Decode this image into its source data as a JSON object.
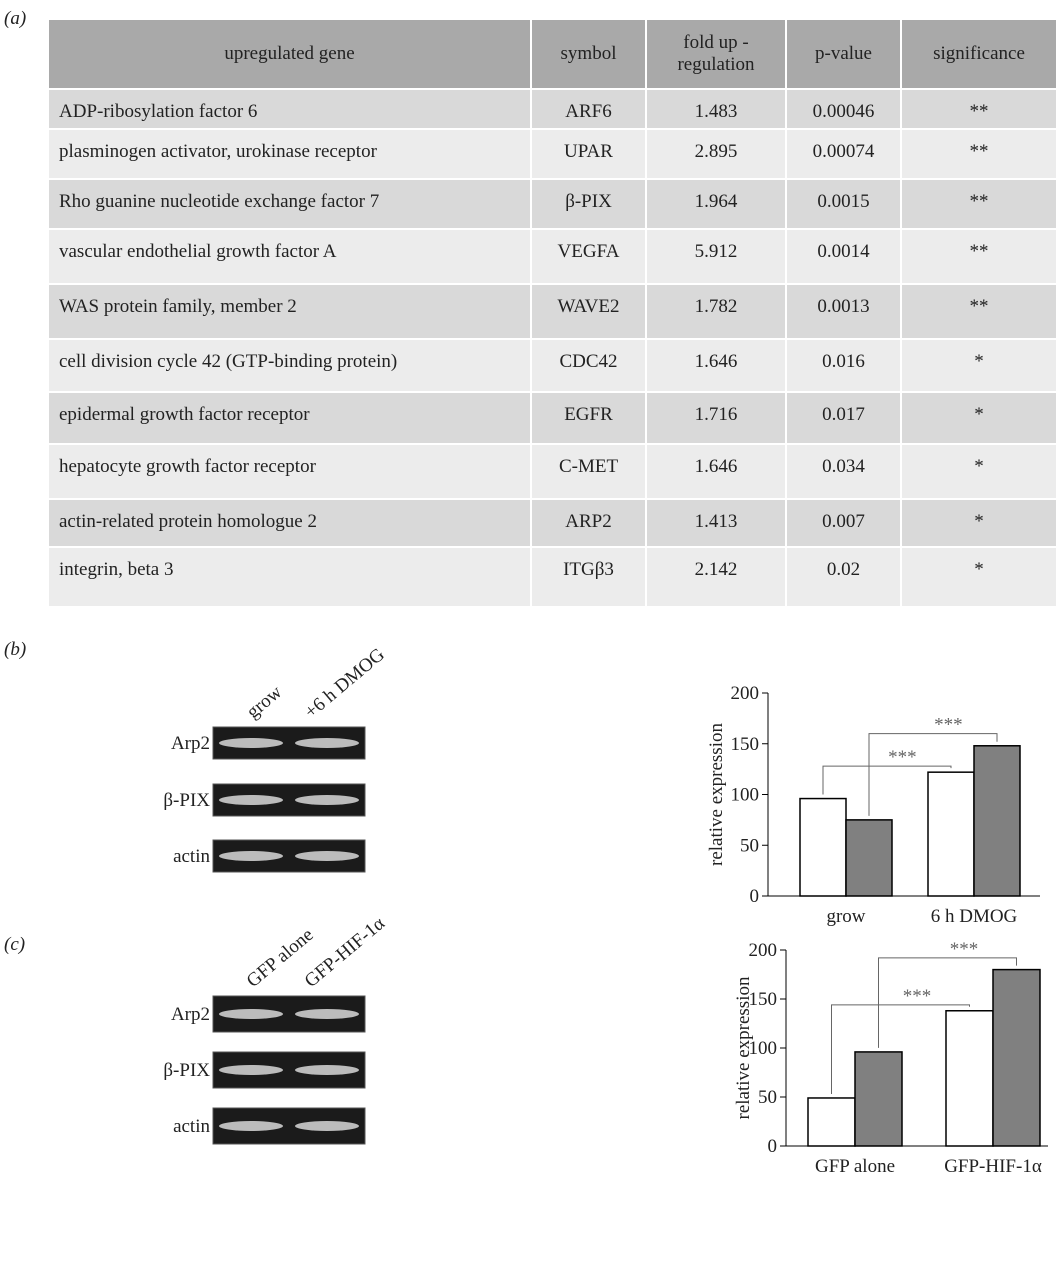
{
  "panel_labels": [
    "(a)",
    "(b)",
    "(c)"
  ],
  "table": {
    "header": [
      "upregulated gene",
      "symbol",
      "fold up - regulation",
      "p-value",
      "significance"
    ],
    "rows": [
      [
        "ADP-ribosylation factor 6",
        "ARF6",
        "1.483",
        "0.00046",
        "**"
      ],
      [
        "plasminogen activator, urokinase receptor",
        "UPAR",
        "2.895",
        "0.00074",
        "**"
      ],
      [
        "Rho guanine nucleotide exchange factor 7",
        "β-PIX",
        "1.964",
        "0.0015",
        "**"
      ],
      [
        "vascular endothelial growth factor A",
        "VEGFA",
        "5.912",
        "0.0014",
        "**"
      ],
      [
        "WAS protein family, member 2",
        "WAVE2",
        "1.782",
        "0.0013",
        "**"
      ],
      [
        "cell division cycle 42 (GTP-binding protein)",
        "CDC42",
        "1.646",
        "0.016",
        "*"
      ],
      [
        "epidermal growth factor receptor",
        "EGFR",
        "1.716",
        "0.017",
        "*"
      ],
      [
        "hepatocyte growth factor receptor",
        "C-MET",
        "1.646",
        "0.034",
        "*"
      ],
      [
        "actin-related protein homologue 2",
        "ARP2",
        "1.413",
        "0.007",
        "*"
      ],
      [
        "integrin, beta 3",
        "ITGβ3",
        "2.142",
        "0.02",
        "*"
      ]
    ]
  },
  "gels": [
    {
      "lanes": [
        "grow",
        "+6 h DMOG"
      ],
      "rows": [
        "Arp2",
        "β-PIX",
        "actin"
      ]
    },
    {
      "lanes": [
        "GFP alone",
        "GFP-HIF-1α"
      ],
      "rows": [
        "Arp2",
        "β-PIX",
        "actin"
      ]
    }
  ],
  "chart_data": [
    {
      "type": "bar",
      "categories": [
        "grow",
        "6 h DMOG"
      ],
      "series": [
        {
          "color": "#ffffff",
          "values": [
            96,
            122
          ]
        },
        {
          "color": "#808080",
          "values": [
            75,
            148
          ]
        }
      ],
      "edgecolor": "#000000",
      "ylim": [
        0,
        200
      ],
      "yticks": [
        0,
        50,
        100,
        150,
        200
      ],
      "y_label": "relative expression",
      "annotations": [
        "***",
        "***"
      ]
    },
    {
      "type": "bar",
      "categories": [
        "GFP alone",
        "GFP-HIF-1α"
      ],
      "series": [
        {
          "color": "#ffffff",
          "values": [
            49,
            138
          ]
        },
        {
          "color": "#808080",
          "values": [
            96,
            180
          ]
        }
      ],
      "edgecolor": "#000000",
      "ylim": [
        0,
        200
      ],
      "yticks": [
        0,
        50,
        100,
        150,
        200
      ],
      "y_label": "relative expression",
      "annotations": [
        "***",
        "***"
      ]
    }
  ]
}
